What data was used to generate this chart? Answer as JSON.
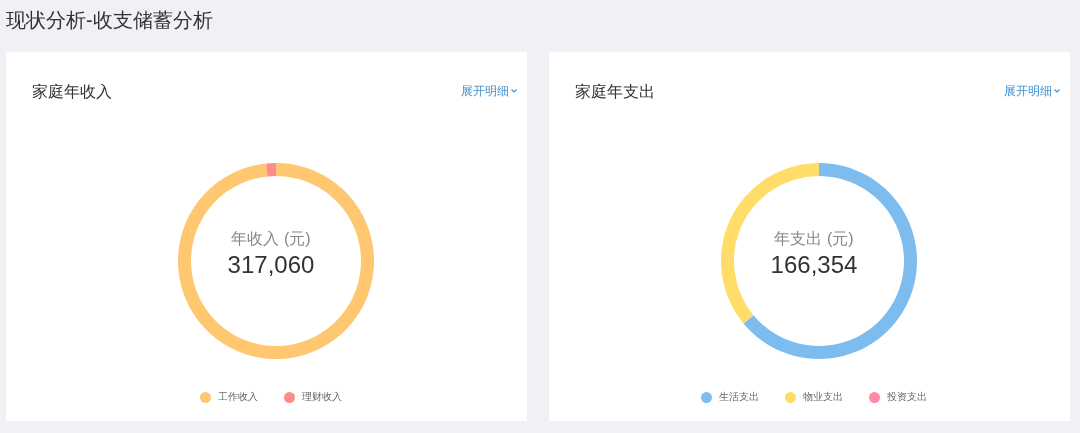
{
  "chart_data": [
    {
      "type": "other",
      "title": "现状分析-收支储蓄分析"
    },
    {
      "type": "donut",
      "title": "家庭年收入",
      "categories": [
        "工作收入",
        "理财收入"
      ],
      "values": [
        98.4,
        1.6
      ],
      "colors": [
        "#ffc76f",
        "#ff8c8c"
      ],
      "legend": "bottom",
      "annotations": [
        "展开明细",
        "年收入 (元)",
        "317,060"
      ]
    },
    {
      "type": "donut",
      "title": "家庭年支出",
      "categories": [
        "生活支出",
        "物业支出",
        "投资支出"
      ],
      "values": [
        64,
        36,
        0
      ],
      "colors": [
        "#7dbcee",
        "#ffdd68",
        "#ff8aa6"
      ],
      "legend": "bottom",
      "annotations": [
        "展开明细",
        "年支出 (元)",
        "166,354"
      ]
    }
  ]
}
